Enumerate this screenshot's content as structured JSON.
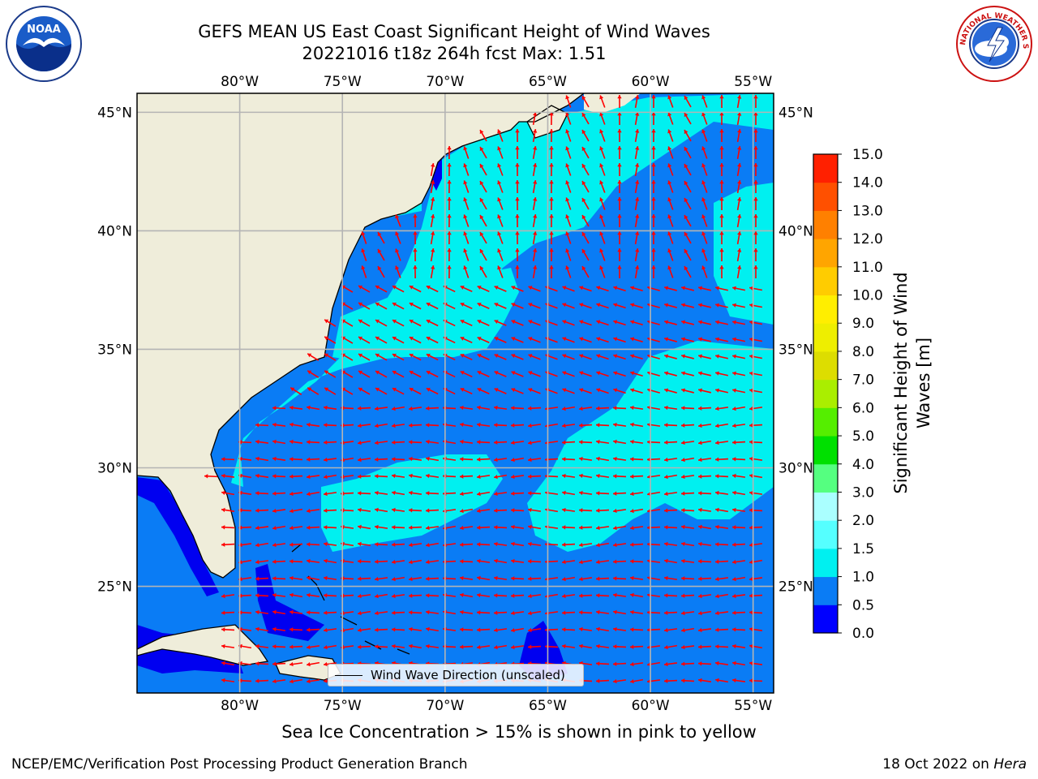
{
  "title": {
    "line1": "GEFS MEAN US East Coast Significant Height of Wind Waves",
    "line2": "20221016 t18z 264h fcst   Max: 1.51"
  },
  "logos": {
    "noaa": {
      "text": "NOAA",
      "icon": "noaa-seagull-icon"
    },
    "nws": {
      "text": "NATIONAL WEATHER SERVICE",
      "icon": "nws-lightning-cloud-icon"
    }
  },
  "map": {
    "lon_ticks": [
      "80°W",
      "75°W",
      "70°W",
      "65°W",
      "60°W",
      "55°W"
    ],
    "lat_ticks": [
      "45°N",
      "40°N",
      "35°N",
      "30°N",
      "25°N"
    ],
    "lon_range": [
      -85,
      -54
    ],
    "lat_range": [
      20.5,
      45.8
    ],
    "colors": {
      "land": "#efedda",
      "dark_blue": "#0000f0",
      "mid_blue": "#0a7cf5",
      "cyan": "#00f0f0",
      "arrow": "#ff0000",
      "grid": "#b4b4b4"
    }
  },
  "legend": {
    "label": "Wind Wave Direction (unscaled)"
  },
  "colorbar": {
    "label": "Significant Height of Wind Waves [m]",
    "ticks": [
      "0.0",
      "0.5",
      "1.0",
      "1.5",
      "2.0",
      "3.0",
      "4.0",
      "5.0",
      "6.0",
      "7.0",
      "8.0",
      "9.0",
      "10.0",
      "11.0",
      "12.0",
      "13.0",
      "14.0",
      "15.0"
    ],
    "colors": [
      "#0000ff",
      "#0a7cf5",
      "#00f0f0",
      "#55ffff",
      "#aaffff",
      "#55ff80",
      "#00e000",
      "#55ee00",
      "#aaee00",
      "#dddd00",
      "#eeee00",
      "#ffee00",
      "#ffcc00",
      "#ffa500",
      "#ff8000",
      "#ff5000",
      "#ff2000"
    ]
  },
  "caption": "Sea Ice Concentration > 15% is shown in pink to yellow",
  "footer": {
    "left": "NCEP/EMC/Verification Post Processing Product Generation Branch",
    "date": "18 Oct 2022 on",
    "machine": "Hera"
  }
}
